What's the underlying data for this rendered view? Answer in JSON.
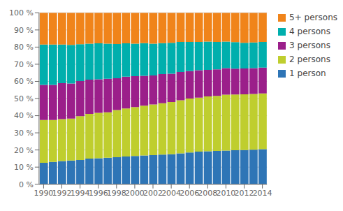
{
  "chart_data": {
    "type": "bar",
    "stacked": true,
    "grid": true,
    "legend": "right",
    "x": [
      1990,
      1991,
      1992,
      1993,
      1994,
      1995,
      1996,
      1997,
      1998,
      1999,
      2000,
      2001,
      2002,
      2003,
      2004,
      2005,
      2006,
      2007,
      2008,
      2009,
      2010,
      2011,
      2012,
      2013,
      2014
    ],
    "series": [
      {
        "name": "1 person",
        "color": "#2E75B6",
        "values": [
          12.5,
          13.0,
          13.5,
          13.8,
          14.2,
          15.0,
          15.2,
          15.5,
          15.8,
          16.2,
          16.5,
          16.8,
          17.0,
          17.3,
          17.5,
          18.0,
          18.5,
          19.0,
          19.2,
          19.5,
          19.7,
          19.9,
          20.0,
          20.2,
          20.5
        ]
      },
      {
        "name": "2 persons",
        "color": "#BFCE2E",
        "values": [
          25.0,
          24.5,
          24.5,
          24.5,
          25.5,
          26.0,
          26.5,
          26.5,
          27.5,
          28.0,
          28.5,
          29.0,
          29.5,
          30.0,
          30.5,
          31.0,
          31.5,
          31.5,
          32.0,
          32.0,
          32.5,
          32.5,
          32.5,
          32.5,
          32.5
        ]
      },
      {
        "name": "3 persons",
        "color": "#9B1F8A",
        "values": [
          20.5,
          20.5,
          21.0,
          20.5,
          20.5,
          20.0,
          19.5,
          19.5,
          18.5,
          18.5,
          18.0,
          17.5,
          17.0,
          17.0,
          16.5,
          16.5,
          16.0,
          16.0,
          15.5,
          15.5,
          15.5,
          15.0,
          15.0,
          15.0,
          15.0
        ]
      },
      {
        "name": "4 persons",
        "color": "#00AFAD",
        "values": [
          23.5,
          23.5,
          22.5,
          22.5,
          21.5,
          21.0,
          21.0,
          20.5,
          20.0,
          19.5,
          19.0,
          19.0,
          18.5,
          18.0,
          18.0,
          17.5,
          17.0,
          16.5,
          16.5,
          16.0,
          15.5,
          15.5,
          15.0,
          15.0,
          15.0
        ]
      },
      {
        "name": "5+ persons",
        "color": "#F0841A",
        "values": [
          18.5,
          18.5,
          18.5,
          18.7,
          18.3,
          18.0,
          17.8,
          18.0,
          18.2,
          17.8,
          18.0,
          17.7,
          18.0,
          17.7,
          17.5,
          17.0,
          17.0,
          17.0,
          16.8,
          17.0,
          16.8,
          17.1,
          17.5,
          17.3,
          17.0
        ]
      }
    ],
    "xlim": [
      1989.5,
      2014.5
    ],
    "xticks": [
      1990,
      1992,
      1994,
      1996,
      1998,
      2000,
      2002,
      2004,
      2006,
      2008,
      2010,
      2012,
      2014
    ],
    "ylim": [
      0,
      100
    ],
    "yticks": [
      {
        "value": 0,
        "label": "0 %"
      },
      {
        "value": 10,
        "label": "10 %"
      },
      {
        "value": 20,
        "label": "20 %"
      },
      {
        "value": 30,
        "label": "30 %"
      },
      {
        "value": 40,
        "label": "40 %"
      },
      {
        "value": 50,
        "label": "50 %"
      },
      {
        "value": 60,
        "label": "60 %"
      },
      {
        "value": 70,
        "label": "70 %"
      },
      {
        "value": 80,
        "label": "80 %"
      },
      {
        "value": 90,
        "label": "90 %"
      },
      {
        "value": 100,
        "label": "100 %"
      }
    ]
  }
}
